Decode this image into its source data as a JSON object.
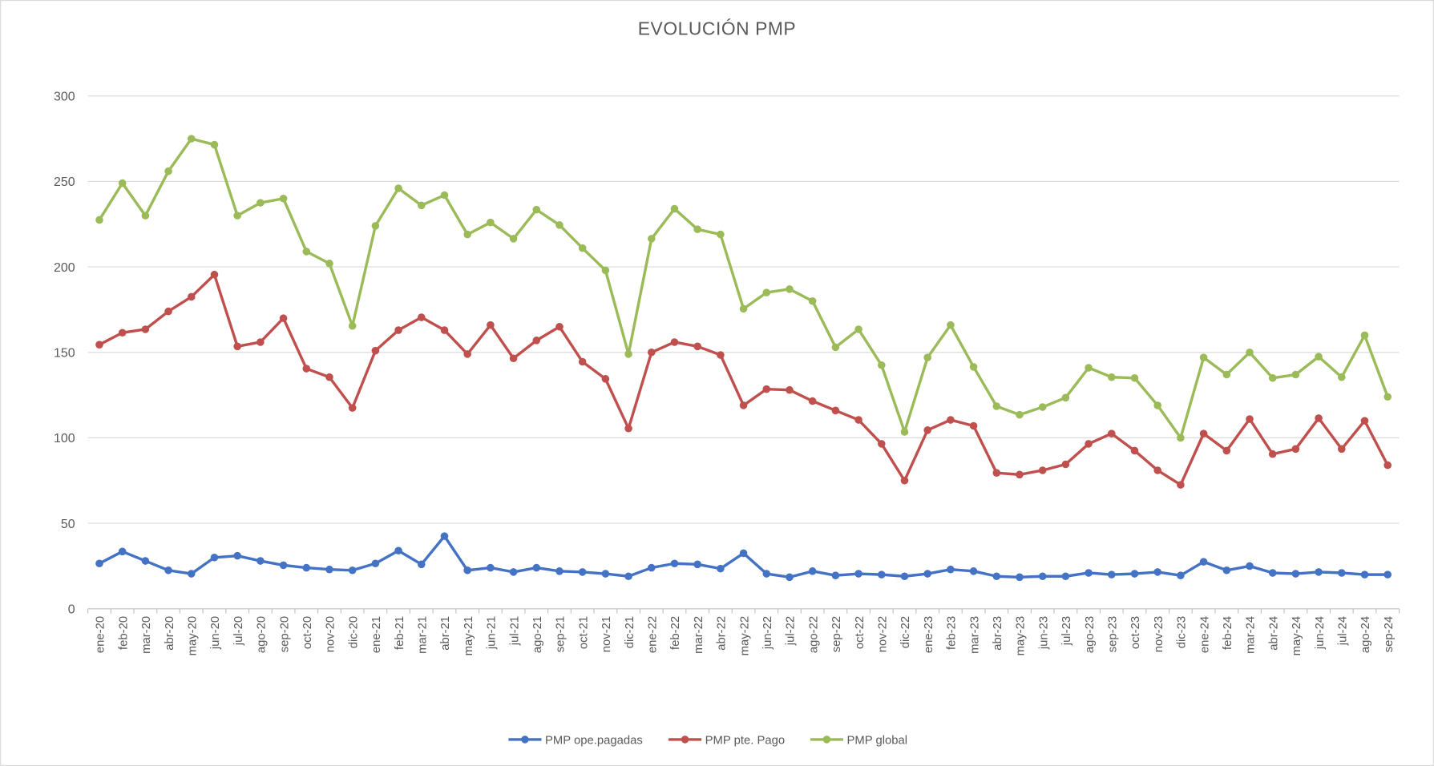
{
  "chart_data": {
    "type": "line",
    "title": "EVOLUCIÓN PMP",
    "xlabel": "",
    "ylabel": "",
    "ylim": [
      0,
      300
    ],
    "yticks": [
      0,
      50,
      100,
      150,
      200,
      250,
      300
    ],
    "grid": true,
    "legend_position": "bottom",
    "categories": [
      "ene-20",
      "feb-20",
      "mar-20",
      "abr-20",
      "may-20",
      "jun-20",
      "jul-20",
      "ago-20",
      "sep-20",
      "oct-20",
      "nov-20",
      "dic-20",
      "ene-21",
      "feb-21",
      "mar-21",
      "abr-21",
      "may-21",
      "jun-21",
      "jul-21",
      "ago-21",
      "sep-21",
      "oct-21",
      "nov-21",
      "dic-21",
      "ene-22",
      "feb-22",
      "mar-22",
      "abr-22",
      "may-22",
      "jun-22",
      "jul-22",
      "ago-22",
      "sep-22",
      "oct-22",
      "nov-22",
      "dic-22",
      "ene-23",
      "feb-23",
      "mar-23",
      "abr-23",
      "may-23",
      "jun-23",
      "jul-23",
      "ago-23",
      "sep-23",
      "oct-23",
      "nov-23",
      "dic-23",
      "ene-24",
      "feb-24",
      "mar-24",
      "abr-24",
      "may-24",
      "jun-24",
      "jul-24",
      "ago-24",
      "sep-24"
    ],
    "series": [
      {
        "name": "PMP ope.pagadas",
        "color": "#4472c4",
        "values": [
          26.5,
          33.5,
          28,
          22.5,
          20.5,
          30,
          31,
          28,
          25.5,
          24,
          23,
          22.5,
          26.5,
          34,
          26,
          42.5,
          22.5,
          24,
          21.5,
          24,
          22,
          21.5,
          20.5,
          19,
          24,
          26.5,
          26,
          23.5,
          32.5,
          20.5,
          18.5,
          22,
          19.5,
          20.5,
          20,
          19,
          20.5,
          23,
          22,
          19,
          18.5,
          19,
          19,
          21,
          20,
          20.5,
          21.5,
          19.5,
          27.5,
          22.5,
          25,
          21,
          20.5,
          21.5,
          21,
          20,
          20
        ]
      },
      {
        "name": "PMP pte. Pago",
        "color": "#c0504d",
        "values": [
          154.5,
          161.5,
          163.5,
          174,
          182.5,
          195.5,
          153.5,
          156,
          170,
          140.5,
          135.5,
          117.5,
          151,
          163,
          170.5,
          163,
          149,
          166,
          146.5,
          157,
          165,
          144.5,
          134.5,
          105.5,
          150,
          156,
          153.5,
          148.5,
          119,
          128.5,
          128,
          121.5,
          116,
          110.5,
          96.5,
          75,
          104.5,
          110.5,
          107,
          79.5,
          78.5,
          81,
          84.5,
          96.5,
          102.5,
          92.5,
          81,
          72.5,
          102.5,
          92.5,
          111,
          90.5,
          93.5,
          111.5,
          93.5,
          110,
          84
        ]
      },
      {
        "name": "PMP global",
        "color": "#9bbb59",
        "values": [
          227.5,
          249,
          230,
          256,
          275,
          271.5,
          230,
          237.5,
          240,
          209,
          202,
          165.5,
          224,
          246,
          236,
          242,
          219,
          226,
          216.5,
          233.5,
          224.5,
          211,
          198,
          149,
          216.5,
          234,
          222,
          219,
          175.5,
          185,
          187,
          180,
          153,
          163.5,
          142.5,
          103.5,
          147,
          166,
          141.5,
          118.5,
          113.5,
          118,
          123.5,
          141,
          135.5,
          135,
          119,
          100,
          147,
          137,
          150,
          135,
          137,
          147.5,
          135.5,
          160,
          124
        ]
      }
    ]
  }
}
